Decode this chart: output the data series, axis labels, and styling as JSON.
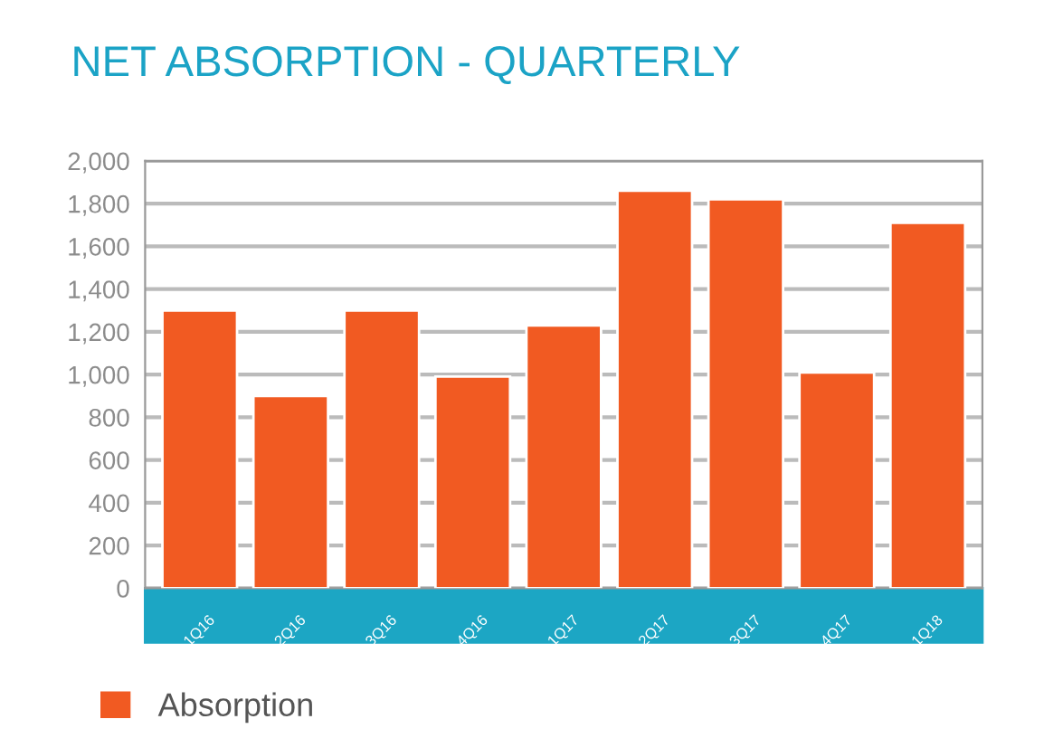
{
  "chart_data": {
    "type": "bar",
    "title": "NET ABSORPTION - QUARTERLY",
    "categories": [
      "1Q16",
      "2Q16",
      "3Q16",
      "4Q16",
      "1Q17",
      "2Q17",
      "3Q17",
      "4Q17",
      "1Q18"
    ],
    "series": [
      {
        "name": "Absorption",
        "color": "#f15a22",
        "values": [
          1300,
          900,
          1300,
          990,
          1230,
          1860,
          1820,
          1010,
          1710
        ]
      }
    ],
    "ylim": [
      0,
      2000
    ],
    "yticks": [
      0,
      200,
      400,
      600,
      800,
      {
        "value": 1000,
        "label": "1,000"
      },
      {
        "value": 1200,
        "label": "1,200"
      },
      {
        "value": 1400,
        "label": "1,400"
      },
      {
        "value": 1600,
        "label": "1,600"
      },
      {
        "value": 1800,
        "label": "1,800"
      },
      {
        "value": 2000,
        "label": "2,000"
      }
    ],
    "grid": "y",
    "legend": "bottom left"
  }
}
